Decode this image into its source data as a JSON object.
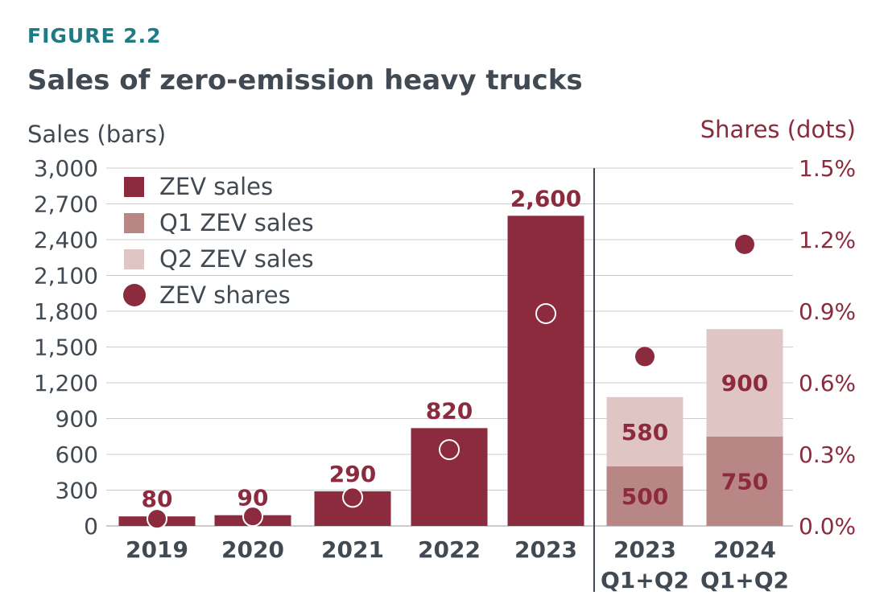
{
  "figure_label": "FIGURE 2.2",
  "chart_data": {
    "type": "bar",
    "title": "Sales of zero-emission heavy trucks",
    "ylabel": "Sales (bars)",
    "y2label": "Shares (dots)",
    "ylim": [
      0,
      3000
    ],
    "y2lim": [
      0,
      1.5
    ],
    "yticks": [
      "0",
      "300",
      "600",
      "900",
      "1,200",
      "1,500",
      "1,800",
      "2,100",
      "2,400",
      "2,700",
      "3,000"
    ],
    "y2ticks": [
      "0.0%",
      "0.3%",
      "0.6%",
      "0.9%",
      "1.2%",
      "1.5%"
    ],
    "grid": true,
    "legend_position": "top-left",
    "legend": [
      {
        "label": "ZEV sales",
        "marker": "square",
        "color": "#8c2a3e"
      },
      {
        "label": "Q1 ZEV sales",
        "marker": "square",
        "color": "#b98686"
      },
      {
        "label": "Q2 ZEV sales",
        "marker": "square",
        "color": "#e0c5c5"
      },
      {
        "label": "ZEV shares",
        "marker": "circle",
        "color": "#8c2a3e"
      }
    ],
    "annual": {
      "categories": [
        "2019",
        "2020",
        "2021",
        "2022",
        "2023"
      ],
      "sales": [
        80,
        90,
        290,
        820,
        2600
      ],
      "labels": [
        "80",
        "90",
        "290",
        "820",
        "2,600"
      ],
      "shares_pct": [
        0.03,
        0.04,
        0.12,
        0.32,
        0.89
      ]
    },
    "half_year": {
      "categories": [
        [
          "2023",
          "Q1+Q2"
        ],
        [
          "2024",
          "Q1+Q2"
        ]
      ],
      "q1_sales": [
        500,
        750
      ],
      "q2_sales": [
        580,
        900
      ],
      "q1_labels": [
        "500",
        "750"
      ],
      "q2_labels": [
        "580",
        "900"
      ],
      "shares_pct": [
        0.71,
        1.18
      ]
    },
    "colors": {
      "zev": "#8c2a3e",
      "q1": "#b98686",
      "q2": "#e0c5c5",
      "grid": "#cccccc",
      "text": "#414a52",
      "accent": "#8c2a3e"
    }
  }
}
